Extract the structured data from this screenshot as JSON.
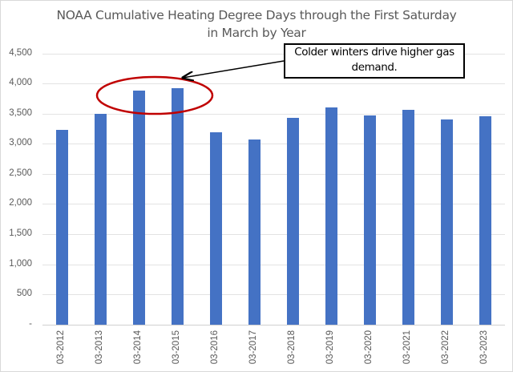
{
  "chart_data": {
    "type": "bar",
    "title": "NOAA Cumulative Heating Degree Days through the First Saturday in March by Year",
    "title_lines": [
      "NOAA Cumulative Heating Degree Days through the First Saturday",
      "in March by Year"
    ],
    "xlabel": "",
    "ylabel": "",
    "categories": [
      "03-2012",
      "03-2013",
      "03-2014",
      "03-2015",
      "03-2016",
      "03-2017",
      "03-2018",
      "03-2019",
      "03-2020",
      "03-2021",
      "03-2022",
      "03-2023"
    ],
    "values": [
      3235,
      3500,
      3887,
      3923,
      3190,
      3067,
      3434,
      3603,
      3470,
      3567,
      3400,
      3453
    ],
    "ylim": [
      0,
      4500
    ],
    "yticks": [
      0,
      500,
      1000,
      1500,
      2000,
      2500,
      3000,
      3500,
      4000,
      4500
    ],
    "ytick_labels": [
      "-",
      "500",
      "1,000",
      "1,500",
      "2,000",
      "2,500",
      "3,000",
      "3,500",
      "4,000",
      "4,500"
    ],
    "grid": true,
    "legend": null,
    "bar_color": "#4472c4",
    "annotations": [
      {
        "type": "callout",
        "text": "Colder winters drive higher gas demand.",
        "text_lines": [
          "Colder winters drive higher gas",
          "demand."
        ],
        "arrow_to": "ellipse around 03-2014 and 03-2015"
      },
      {
        "type": "ellipse",
        "color": "#c00000",
        "highlights": [
          "03-2014",
          "03-2015"
        ]
      }
    ]
  }
}
